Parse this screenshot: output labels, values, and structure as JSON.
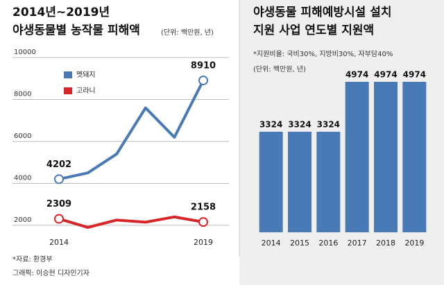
{
  "chart_data": [
    {
      "type": "line",
      "title": [
        "2014년~2019년",
        "야생동물별 농작물 피해액"
      ],
      "unit": "(단위: 백만원, 년)",
      "categories": [
        "2014",
        null,
        null,
        null,
        null,
        "2019"
      ],
      "series": [
        {
          "name": "멧돼지",
          "color": "#4a7ab5",
          "values": [
            4202,
            4500,
            5400,
            7600,
            6200,
            8910
          ],
          "value_labels": [
            "4202",
            null,
            null,
            null,
            null,
            "8910"
          ]
        },
        {
          "name": "고라니",
          "color": "#d7262a",
          "values": [
            2309,
            1900,
            2250,
            2150,
            2400,
            2158
          ],
          "value_labels": [
            "2309",
            null,
            null,
            null,
            null,
            "2158"
          ]
        }
      ],
      "ylim": [
        1700,
        10000
      ],
      "yticks": [
        2000,
        4000,
        6000,
        8000,
        10000
      ],
      "grid": true
    },
    {
      "type": "bar",
      "title": [
        "야생동물 피해예방시설 설치",
        "지원 사업 연도별 지원액"
      ],
      "subtitle": "*지원비율: 국비30%, 지방비30%, 자부담40%",
      "unit": "(단위: 백만원, 년)",
      "categories": [
        "2014",
        "2015",
        "2016",
        "2017",
        "2018",
        "2019"
      ],
      "values": [
        3324,
        3324,
        3324,
        4974,
        4974,
        4974
      ],
      "color": "#4a7ab5"
    }
  ],
  "footer": {
    "source": "*자료: 환경부",
    "credit": "그래픽: 이승현 디자인기자"
  }
}
